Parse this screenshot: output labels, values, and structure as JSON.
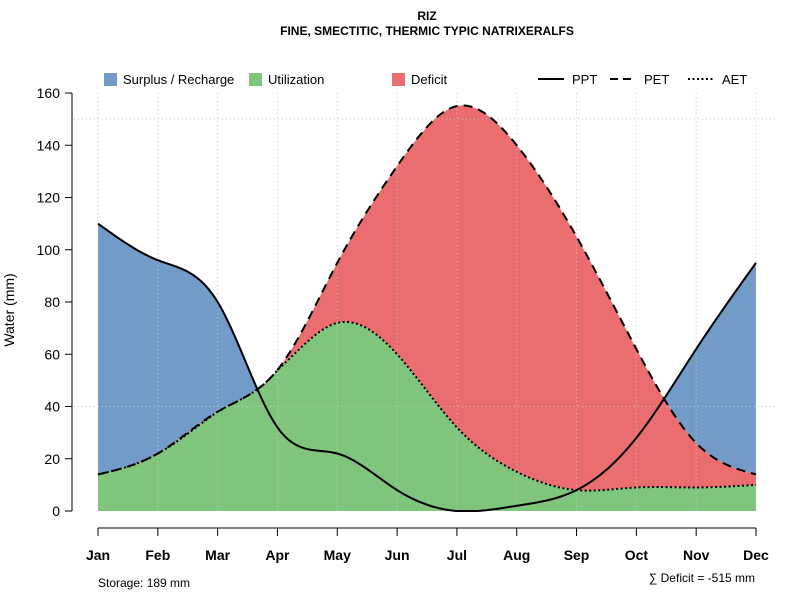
{
  "chart_data": {
    "type": "area",
    "title": "RIZ",
    "subtitle": "FINE, SMECTITIC, THERMIC TYPIC NATRIXERALFS",
    "xlabel": "",
    "ylabel": "Water (mm)",
    "ylim": [
      0,
      160
    ],
    "yticks": [
      0,
      20,
      40,
      60,
      80,
      100,
      120,
      140,
      160
    ],
    "categories": [
      "Jan",
      "Feb",
      "Mar",
      "Apr",
      "May",
      "Jun",
      "Jul",
      "Aug",
      "Sep",
      "Oct",
      "Nov",
      "Dec"
    ],
    "series": [
      {
        "name": "PPT",
        "style": "solid",
        "values": [
          110,
          96,
          80,
          32,
          22,
          8,
          0,
          2,
          8,
          28,
          62,
          95
        ]
      },
      {
        "name": "PET",
        "style": "dashed",
        "values": [
          14,
          22,
          38,
          54,
          95,
          132,
          155,
          140,
          105,
          62,
          26,
          14
        ]
      },
      {
        "name": "AET",
        "style": "dotted",
        "values": [
          14,
          22,
          38,
          54,
          72,
          60,
          32,
          15,
          8,
          9,
          9,
          10
        ]
      }
    ],
    "fills": [
      {
        "name": "Surplus / Recharge",
        "color": "#729bc8"
      },
      {
        "name": "Utilization",
        "color": "#7fc57c"
      },
      {
        "name": "Deficit",
        "color": "#ea6e6f"
      }
    ],
    "legend": {
      "fill_items": [
        "Surplus / Recharge",
        "Utilization",
        "Deficit"
      ],
      "line_items": [
        "PPT",
        "PET",
        "AET"
      ]
    },
    "annotations": {
      "storage": "Storage: 189 mm",
      "deficit": "∑ Deficit = -515 mm"
    },
    "grid": true
  }
}
